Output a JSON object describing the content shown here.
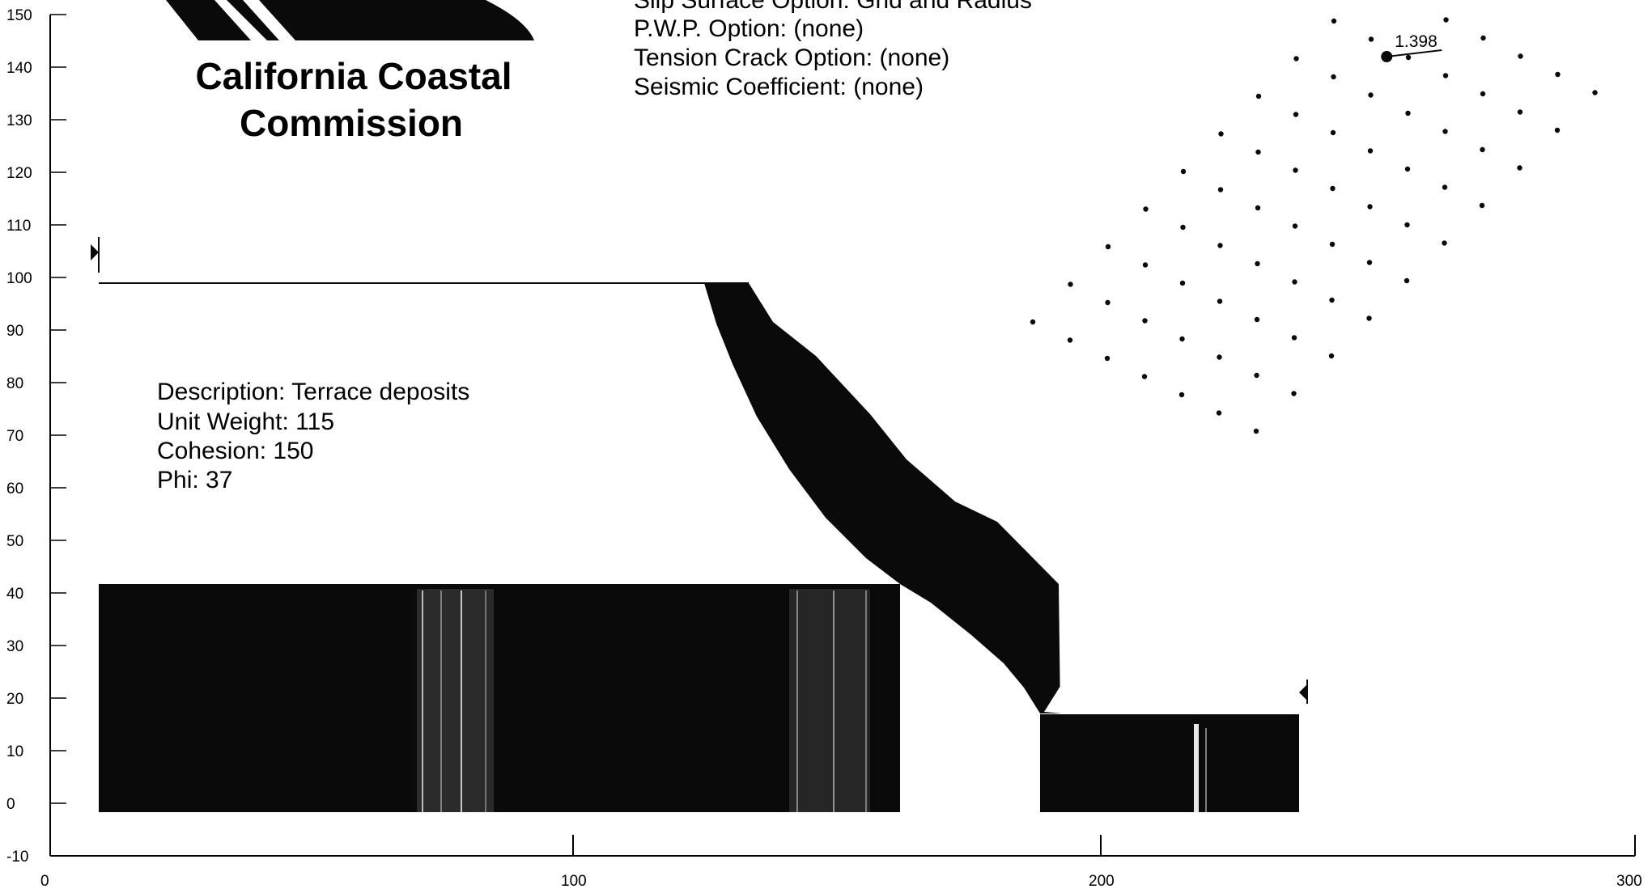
{
  "logo": {
    "line1": "California Coastal",
    "line2": "Commission"
  },
  "analysis_options": [
    "Slip Surface Option: Grid and Radius",
    "P.W.P. Option: (none)",
    "Tension Crack Option: (none)",
    "Seismic Coefficient: (none)"
  ],
  "material": {
    "description": "Description: Terrace deposits",
    "unit_weight": "Unit Weight: 115",
    "cohesion": "Cohesion: 150",
    "phi": "Phi: 37"
  },
  "factor_of_safety": {
    "label": "1.398",
    "x": 253,
    "y": 142
  },
  "axes": {
    "y_ticks": [
      "150",
      "140",
      "130",
      "120",
      "110",
      "100",
      "90",
      "80",
      "70",
      "60",
      "50",
      "40",
      "30",
      "20",
      "10",
      "0",
      "-10"
    ],
    "x_ticks": [
      "0",
      "100",
      "200",
      "300"
    ],
    "xlim": [
      0,
      300
    ],
    "ylim": [
      -10,
      150
    ]
  },
  "colors": {
    "fill": "#0a0a0a",
    "background": "#ffffff"
  }
}
